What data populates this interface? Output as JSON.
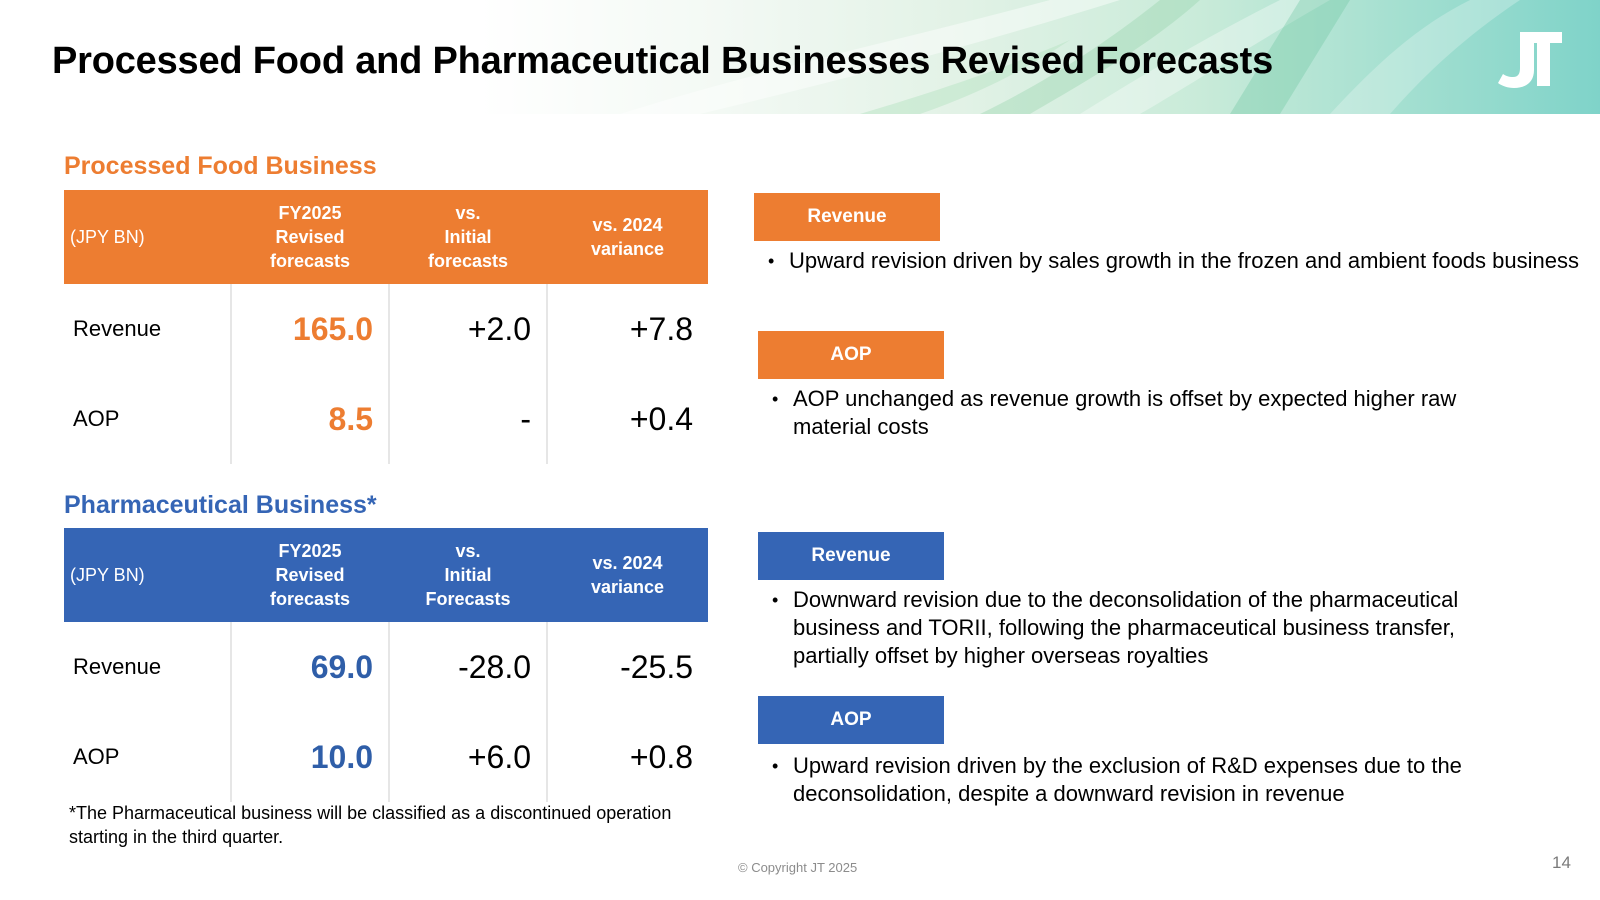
{
  "title": "Processed Food and Pharmaceutical Businesses Revised Forecasts",
  "logo_text": "JT",
  "colors": {
    "food_accent": "#ed7d31",
    "pharma_accent": "#3565b5",
    "pharma_value": "#2f5ea8"
  },
  "food": {
    "section_title": "Processed Food Business",
    "headers": [
      "(JPY BN)",
      "FY2025\nRevised\nforecasts",
      "vs.\nInitial\nforecasts",
      "vs. 2024\nvariance"
    ],
    "rows": [
      {
        "label": "Revenue",
        "forecast": "165.0",
        "vs_initial": "+2.0",
        "vs_2024": "+7.8"
      },
      {
        "label": "AOP",
        "forecast": "8.5",
        "vs_initial": "-",
        "vs_2024": "+0.4"
      }
    ],
    "notes": [
      {
        "badge": "Revenue",
        "text": "Upward revision driven by sales growth in the frozen and ambient foods business"
      },
      {
        "badge": "AOP",
        "text": "AOP unchanged as revenue growth is offset by expected higher raw material costs"
      }
    ]
  },
  "pharma": {
    "section_title": "Pharmaceutical Business*",
    "headers": [
      "(JPY BN)",
      "FY2025\nRevised\nforecasts",
      "vs.\nInitial\nForecasts",
      "vs. 2024\nvariance"
    ],
    "rows": [
      {
        "label": "Revenue",
        "forecast": "69.0",
        "vs_initial": "-28.0",
        "vs_2024": "-25.5"
      },
      {
        "label": "AOP",
        "forecast": "10.0",
        "vs_initial": "+6.0",
        "vs_2024": "+0.8"
      }
    ],
    "notes": [
      {
        "badge": "Revenue",
        "text": "Downward revision due to the deconsolidation of the pharmaceutical business and TORII, following the pharmaceutical business transfer, partially offset by higher overseas royalties"
      },
      {
        "badge": "AOP",
        "text": "Upward revision driven by the exclusion of R&D expenses due to the deconsolidation, despite a downward revision in revenue"
      }
    ]
  },
  "bullet_char": "•",
  "footnote": "*The Pharmaceutical business will be classified as a discontinued operation starting in the third quarter.",
  "copyright": "© Copyright JT 2025",
  "page_number": "14"
}
